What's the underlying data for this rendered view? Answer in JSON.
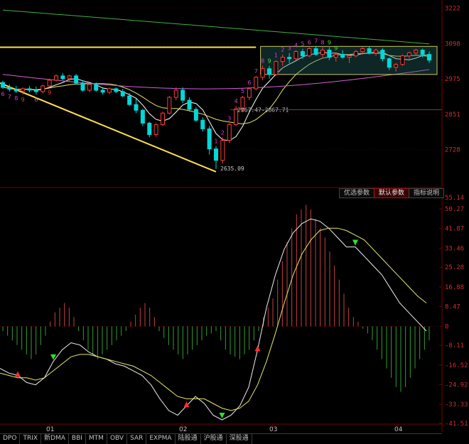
{
  "price_axis": {
    "ticks": [
      "3222",
      "3098",
      "2975",
      "2851",
      "2728"
    ]
  },
  "indicator_axis": {
    "ticks": [
      "55.14",
      "50.27",
      "41.87",
      "33.46",
      "25.28",
      "16.88",
      "8.47",
      "0",
      "-8.11",
      "-16.52",
      "-24.92",
      "-33.33",
      "-41.51"
    ]
  },
  "annotations": {
    "high_range": "2867.47-2867.71",
    "low_point": "2635.09"
  },
  "month_labels": [
    "01",
    "02",
    "03",
    "04"
  ],
  "param_tabs": [
    "优选参数",
    "默认参数",
    "指标说明"
  ],
  "bottom_tabs": [
    "DPO",
    "TRIX",
    "新DMA",
    "BBI",
    "MTM",
    "OBV",
    "SAR",
    "EXPMA",
    "陆股通",
    "沪股通",
    "深股通"
  ],
  "colors": {
    "up": "#ff3b3b",
    "down": "#00d8d8",
    "ma_fast": "#ffffff",
    "ma_mid": "#e8e86a",
    "ma_slow": "#d060d0",
    "ma_long": "#40b040",
    "trend": "#ffe14d",
    "box": "#3a8080",
    "hist_pos": "#c84040",
    "hist_neg": "#30a030"
  },
  "chart_data": [
    {
      "type": "candlestick",
      "ylim": [
        2600,
        3250
      ],
      "candles": [
        [
          2962,
          2968,
          2940,
          2945
        ],
        [
          2945,
          2955,
          2930,
          2938
        ],
        [
          2938,
          2950,
          2925,
          2932
        ],
        [
          2932,
          2945,
          2920,
          2940
        ],
        [
          2940,
          2950,
          2928,
          2935
        ],
        [
          2935,
          2948,
          2920,
          2930
        ],
        [
          2930,
          2955,
          2925,
          2950
        ],
        [
          2950,
          2975,
          2945,
          2970
        ],
        [
          2970,
          2990,
          2965,
          2985
        ],
        [
          2985,
          2995,
          2970,
          2975
        ],
        [
          2975,
          2990,
          2965,
          2985
        ],
        [
          2985,
          2992,
          2955,
          2960
        ],
        [
          2960,
          2970,
          2930,
          2935
        ],
        [
          2935,
          2960,
          2928,
          2955
        ],
        [
          2955,
          2962,
          2930,
          2935
        ],
        [
          2935,
          2942,
          2920,
          2928
        ],
        [
          2928,
          2945,
          2922,
          2940
        ],
        [
          2940,
          2945,
          2925,
          2930
        ],
        [
          2930,
          2940,
          2910,
          2915
        ],
        [
          2915,
          2925,
          2880,
          2885
        ],
        [
          2885,
          2905,
          2855,
          2865
        ],
        [
          2865,
          2870,
          2810,
          2820
        ],
        [
          2820,
          2825,
          2770,
          2780
        ],
        [
          2780,
          2820,
          2772,
          2815
        ],
        [
          2815,
          2860,
          2810,
          2855
        ],
        [
          2855,
          2915,
          2850,
          2910
        ],
        [
          2910,
          2945,
          2900,
          2935
        ],
        [
          2935,
          2945,
          2890,
          2900
        ],
        [
          2900,
          2910,
          2860,
          2868
        ],
        [
          2868,
          2875,
          2825,
          2830
        ],
        [
          2830,
          2840,
          2790,
          2800
        ],
        [
          2800,
          2810,
          2710,
          2730
        ],
        [
          2730,
          2740,
          2660,
          2690
        ],
        [
          2690,
          2770,
          2680,
          2760
        ],
        [
          2760,
          2820,
          2750,
          2815
        ],
        [
          2815,
          2880,
          2810,
          2870
        ],
        [
          2870,
          2915,
          2860,
          2910
        ],
        [
          2910,
          2945,
          2900,
          2940
        ],
        [
          2940,
          2985,
          2935,
          2980
        ],
        [
          2980,
          3020,
          2970,
          3010
        ],
        [
          3010,
          3020,
          2975,
          2990
        ],
        [
          2990,
          3040,
          2985,
          3035
        ],
        [
          3035,
          3060,
          3020,
          3050
        ],
        [
          3050,
          3065,
          3030,
          3045
        ],
        [
          3045,
          3075,
          3040,
          3070
        ],
        [
          3070,
          3080,
          3045,
          3055
        ],
        [
          3055,
          3085,
          3050,
          3080
        ],
        [
          3080,
          3090,
          3055,
          3060
        ],
        [
          3060,
          3085,
          3050,
          3075
        ],
        [
          3075,
          3085,
          3040,
          3050
        ],
        [
          3050,
          3065,
          3035,
          3060
        ],
        [
          3060,
          3075,
          3045,
          3050
        ],
        [
          3050,
          3060,
          3030,
          3055
        ],
        [
          3055,
          3075,
          3050,
          3070
        ],
        [
          3070,
          3085,
          3060,
          3080
        ],
        [
          3080,
          3088,
          3060,
          3065
        ],
        [
          3065,
          3080,
          3055,
          3075
        ],
        [
          3075,
          3082,
          3035,
          3045
        ],
        [
          3045,
          3050,
          3005,
          3015
        ],
        [
          3015,
          3030,
          3000,
          3025
        ],
        [
          3025,
          3060,
          3020,
          3055
        ],
        [
          3055,
          3070,
          3045,
          3065
        ],
        [
          3065,
          3080,
          3055,
          3075
        ],
        [
          3075,
          3080,
          3050,
          3060
        ],
        [
          3060,
          3070,
          3030,
          3040
        ]
      ],
      "seq_counts": [
        {
          "i": 0,
          "n": "6",
          "up": false
        },
        {
          "i": 1,
          "n": "7",
          "up": false
        },
        {
          "i": 2,
          "n": "8",
          "up": false
        },
        {
          "i": 3,
          "n": "9",
          "up": false
        },
        {
          "i": 5,
          "n": "6",
          "up": false
        },
        {
          "i": 7,
          "n": "9",
          "up": false
        },
        {
          "i": 32,
          "n": "1",
          "up": true
        },
        {
          "i": 33,
          "n": "2",
          "up": true
        },
        {
          "i": 34,
          "n": "3",
          "up": true
        },
        {
          "i": 35,
          "n": "4",
          "up": true
        },
        {
          "i": 36,
          "n": "5",
          "up": true
        },
        {
          "i": 37,
          "n": "6",
          "up": true
        },
        {
          "i": 38,
          "n": "7",
          "up": true
        },
        {
          "i": 39,
          "n": "8",
          "up": true
        },
        {
          "i": 40,
          "n": "9",
          "up": true
        },
        {
          "i": 41,
          "n": "1",
          "up": true
        },
        {
          "i": 42,
          "n": "2",
          "up": true
        },
        {
          "i": 43,
          "n": "3",
          "up": true
        },
        {
          "i": 44,
          "n": "4",
          "up": true
        },
        {
          "i": 45,
          "n": "5",
          "up": true
        },
        {
          "i": 46,
          "n": "6",
          "up": true
        },
        {
          "i": 47,
          "n": "7",
          "up": true
        },
        {
          "i": 48,
          "n": "8",
          "up": true
        },
        {
          "i": 49,
          "n": "9",
          "up": true
        },
        {
          "i": 50,
          "n": "9",
          "up": true
        }
      ]
    },
    {
      "type": "bar",
      "ylim": [
        -41.51,
        55.14
      ],
      "hist": [
        -2,
        -4,
        -6,
        -8,
        -10,
        -12,
        -14,
        -12,
        -8,
        -4,
        2,
        6,
        8,
        10,
        8,
        4,
        -2,
        -6,
        -10,
        -12,
        -14,
        -12,
        -10,
        -8,
        -6,
        -4,
        -2,
        2,
        5,
        8,
        10,
        8,
        4,
        -2,
        -5,
        -8,
        -10,
        -12,
        -14,
        -12,
        -10,
        -8,
        -6,
        -4,
        -3,
        -2,
        -6,
        -10,
        -12,
        -13,
        -14,
        -12,
        -10,
        -6,
        -2,
        4,
        8,
        12,
        20,
        28,
        36,
        42,
        48,
        50,
        52,
        50,
        46,
        42,
        38,
        32,
        26,
        20,
        14,
        8,
        4,
        2,
        -1,
        -3,
        -6,
        -10,
        -14,
        -18,
        -22,
        -26,
        -28,
        -26,
        -22,
        -18,
        -14,
        -10,
        -6
      ],
      "dif": [
        -18,
        -20,
        -21,
        -24,
        -25,
        -22,
        -15,
        -10,
        -7,
        -8,
        -11,
        -13,
        -14,
        -16,
        -17,
        -19,
        -21,
        -25,
        -31,
        -36,
        -38,
        -34,
        -30,
        -33,
        -38,
        -40,
        -38,
        -34,
        -26,
        -10,
        8,
        22,
        33,
        40,
        44,
        46,
        45,
        42,
        38,
        34,
        34,
        30,
        26,
        22,
        16,
        10,
        6,
        2,
        -2
      ],
      "dea": [
        -20,
        -21,
        -22,
        -22,
        -23,
        -22,
        -19,
        -16,
        -13,
        -12,
        -12,
        -13,
        -14,
        -15,
        -16,
        -17,
        -19,
        -21,
        -24,
        -27,
        -30,
        -31,
        -31,
        -31,
        -33,
        -35,
        -36,
        -35,
        -32,
        -25,
        -15,
        -3,
        10,
        22,
        31,
        37,
        41,
        42,
        42,
        41,
        39,
        37,
        33,
        29,
        25,
        21,
        17,
        13,
        10
      ]
    }
  ]
}
